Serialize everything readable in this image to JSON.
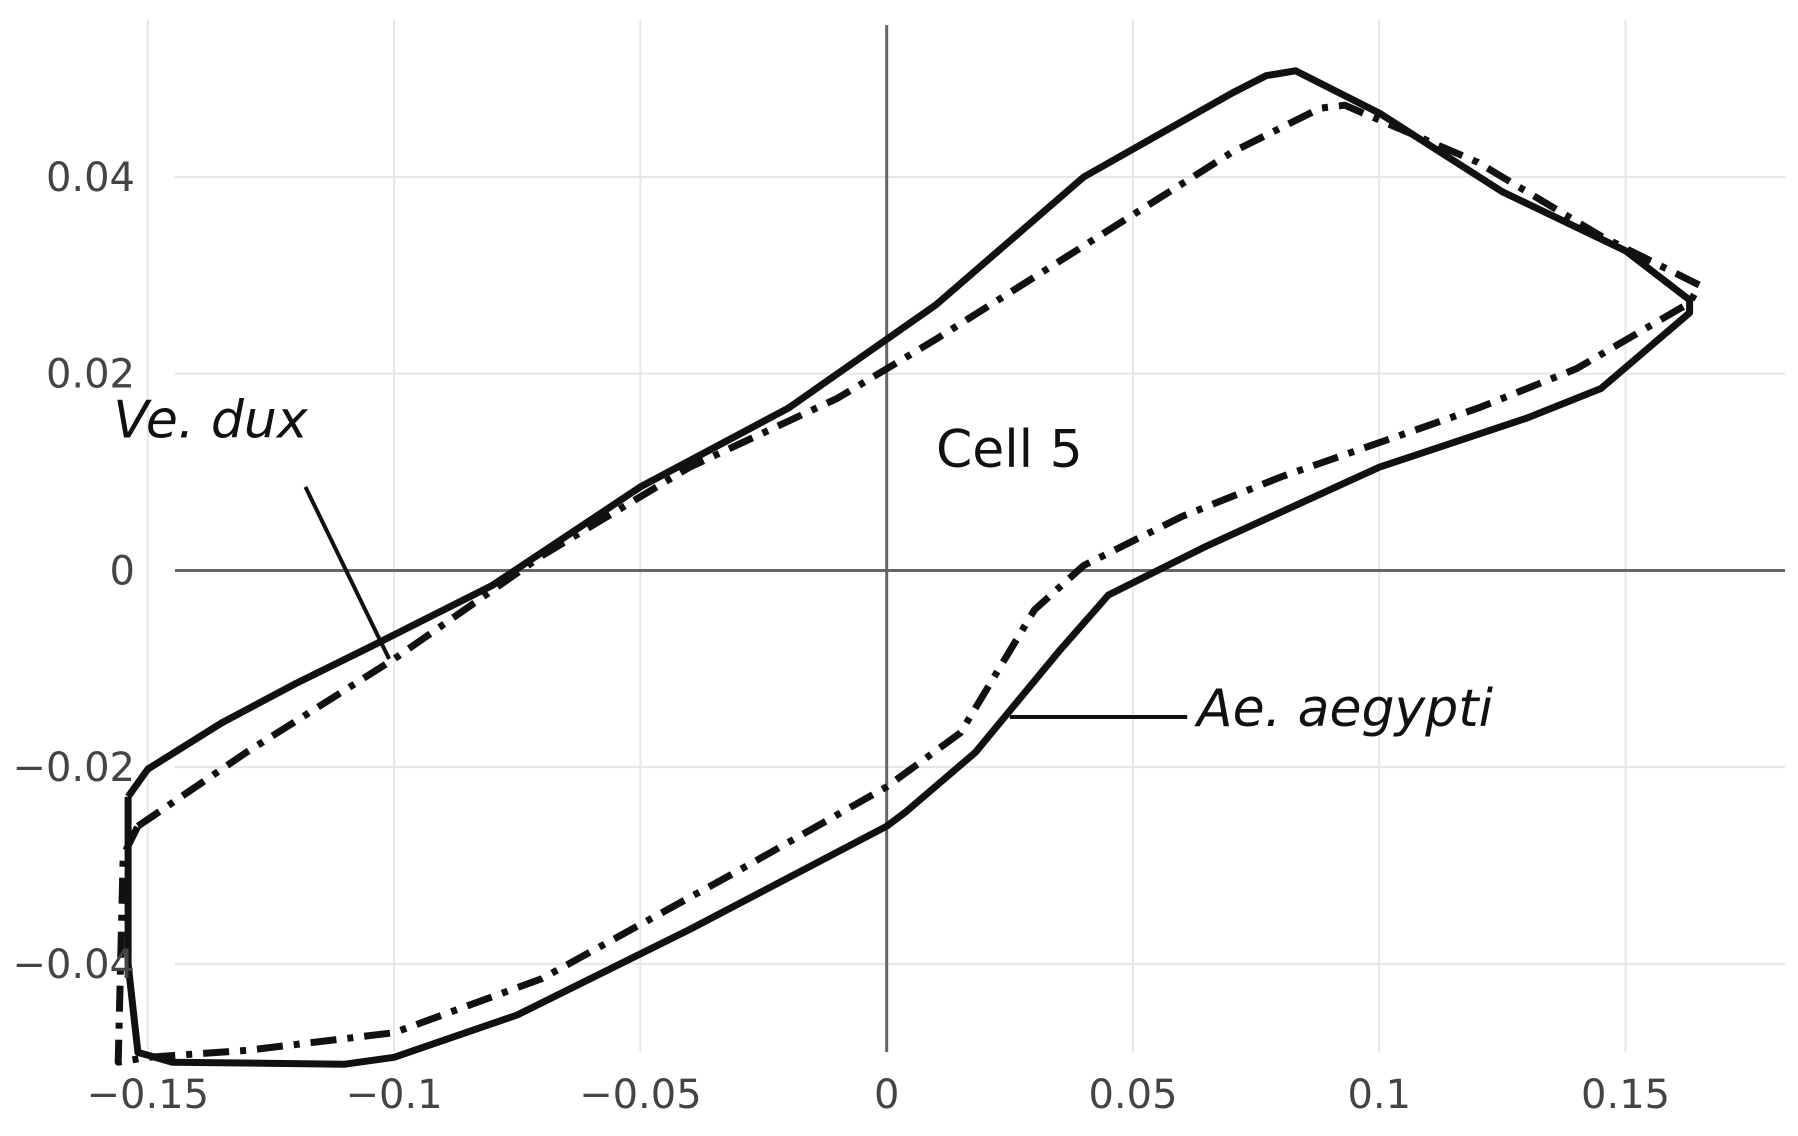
{
  "chart_data": {
    "type": "line",
    "title": "",
    "xlabel": "",
    "ylabel": "",
    "xlim": [
      -0.18,
      0.185
    ],
    "ylim": [
      -0.0575,
      0.058
    ],
    "grid": true,
    "x_ticks": [
      -0.15,
      -0.1,
      -0.05,
      0,
      0.05,
      0.1,
      0.15
    ],
    "x_tick_labels": [
      "−0.15",
      "−0.1",
      "−0.05",
      "0",
      "0.05",
      "0.1",
      "0.15"
    ],
    "y_ticks": [
      -0.04,
      -0.02,
      0,
      0.02,
      0.04
    ],
    "y_tick_labels": [
      "−0.04",
      "−0.02",
      "0",
      "0.02",
      "0.04"
    ],
    "colors": {
      "series": "#111111",
      "grid": "#e6e6e6",
      "axis": "#666666",
      "ticks": "#444444"
    },
    "series": [
      {
        "name": "Ae. aegypti",
        "style": "solid",
        "x": [
          -0.154,
          -0.15,
          -0.135,
          -0.12,
          -0.105,
          -0.08,
          -0.05,
          -0.02,
          0.01,
          0.04,
          0.07,
          0.077,
          0.083,
          0.1,
          0.125,
          0.15,
          0.163,
          0.163,
          0.145,
          0.13,
          0.1,
          0.065,
          0.045,
          0.035,
          0.018,
          0.004,
          0,
          -0.04,
          -0.075,
          -0.1,
          -0.11,
          -0.145,
          -0.152,
          -0.154,
          -0.154
        ],
        "y": [
          -0.023,
          -0.0202,
          -0.0155,
          -0.0115,
          -0.0078,
          -0.0015,
          0.0085,
          0.0165,
          0.027,
          0.04,
          0.0485,
          0.0503,
          0.0508,
          0.0465,
          0.0385,
          0.0325,
          0.0275,
          0.0262,
          0.0185,
          0.0155,
          0.0105,
          0.0025,
          -0.0025,
          -0.0082,
          -0.0185,
          -0.0245,
          -0.026,
          -0.0365,
          -0.0452,
          -0.0495,
          -0.0502,
          -0.05,
          -0.049,
          -0.04,
          -0.023
        ]
      },
      {
        "name": "Ve. dux",
        "style": "dashdot",
        "x": [
          -0.152,
          -0.13,
          -0.1,
          -0.07,
          -0.04,
          -0.01,
          0.01,
          0.04,
          0.07,
          0.088,
          0.093,
          0.12,
          0.145,
          0.165,
          0.163,
          0.14,
          0.12,
          0.08,
          0.06,
          0.04,
          0.03,
          0.015,
          0,
          -0.03,
          -0.07,
          -0.1,
          -0.13,
          -0.15,
          -0.156,
          -0.155,
          -0.152
        ],
        "y": [
          -0.026,
          -0.0185,
          -0.009,
          0.0015,
          0.0105,
          0.0175,
          0.0235,
          0.033,
          0.0425,
          0.047,
          0.0473,
          0.0415,
          0.034,
          0.029,
          0.0272,
          0.0205,
          0.0165,
          0.0095,
          0.0055,
          0.0005,
          -0.004,
          -0.0165,
          -0.022,
          -0.0305,
          -0.0415,
          -0.047,
          -0.0488,
          -0.0495,
          -0.05,
          -0.029,
          -0.026
        ]
      }
    ],
    "annotations": [
      {
        "text": "Ve. dux",
        "style": "italic",
        "x": -0.157,
        "y": 0.0135,
        "arrow_from": [
          -0.118,
          0.0085
        ],
        "arrow_to": [
          -0.101,
          -0.009
        ]
      },
      {
        "text": "Cell 5",
        "style": "normal",
        "x": 0.01,
        "y": 0.0105
      },
      {
        "text": "Ae. aegypti",
        "style": "italic",
        "x": 0.063,
        "y": -0.0158,
        "arrow_from": [
          0.061,
          -0.0149
        ],
        "arrow_to": [
          0.025,
          -0.0149
        ]
      }
    ]
  }
}
